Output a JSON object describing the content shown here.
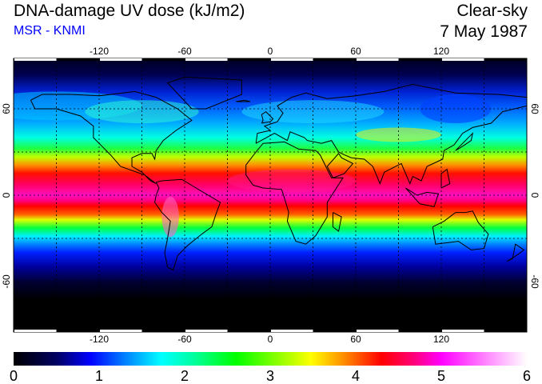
{
  "header": {
    "title": "DNA-damage UV dose (kJ/m2)",
    "subtitle": "MSR - KNMI",
    "condition": "Clear-sky",
    "date": "7 May 1987"
  },
  "map": {
    "lon_ticks": [
      "-120",
      "-60",
      "0",
      "60",
      "120"
    ],
    "lon_values": [
      -120,
      -60,
      0,
      60,
      120
    ],
    "lat_ticks": [
      "60",
      "0",
      "-60"
    ],
    "lat_values": [
      60,
      0,
      -60
    ],
    "gridline_spacing_deg": 30
  },
  "colorbar": {
    "labels": [
      "0",
      "1",
      "2",
      "3",
      "4",
      "5",
      "6"
    ],
    "range": [
      0,
      6
    ],
    "stops": [
      {
        "v": 0,
        "c": "#000000"
      },
      {
        "v": 0.5,
        "c": "#000060"
      },
      {
        "v": 0.9,
        "c": "#0000ff"
      },
      {
        "v": 1.3,
        "c": "#0080ff"
      },
      {
        "v": 1.73,
        "c": "#00ffff"
      },
      {
        "v": 2.1,
        "c": "#00ffa0"
      },
      {
        "v": 2.6,
        "c": "#00ff00"
      },
      {
        "v": 3.48,
        "c": "#ffff00"
      },
      {
        "v": 3.9,
        "c": "#ff8000"
      },
      {
        "v": 4.3,
        "c": "#ff0000"
      },
      {
        "v": 4.7,
        "c": "#ff0080"
      },
      {
        "v": 5.0,
        "c": "#ff00ff"
      },
      {
        "v": 5.5,
        "c": "#ff80ff"
      },
      {
        "v": 6.0,
        "c": "#ffffff"
      }
    ]
  }
}
